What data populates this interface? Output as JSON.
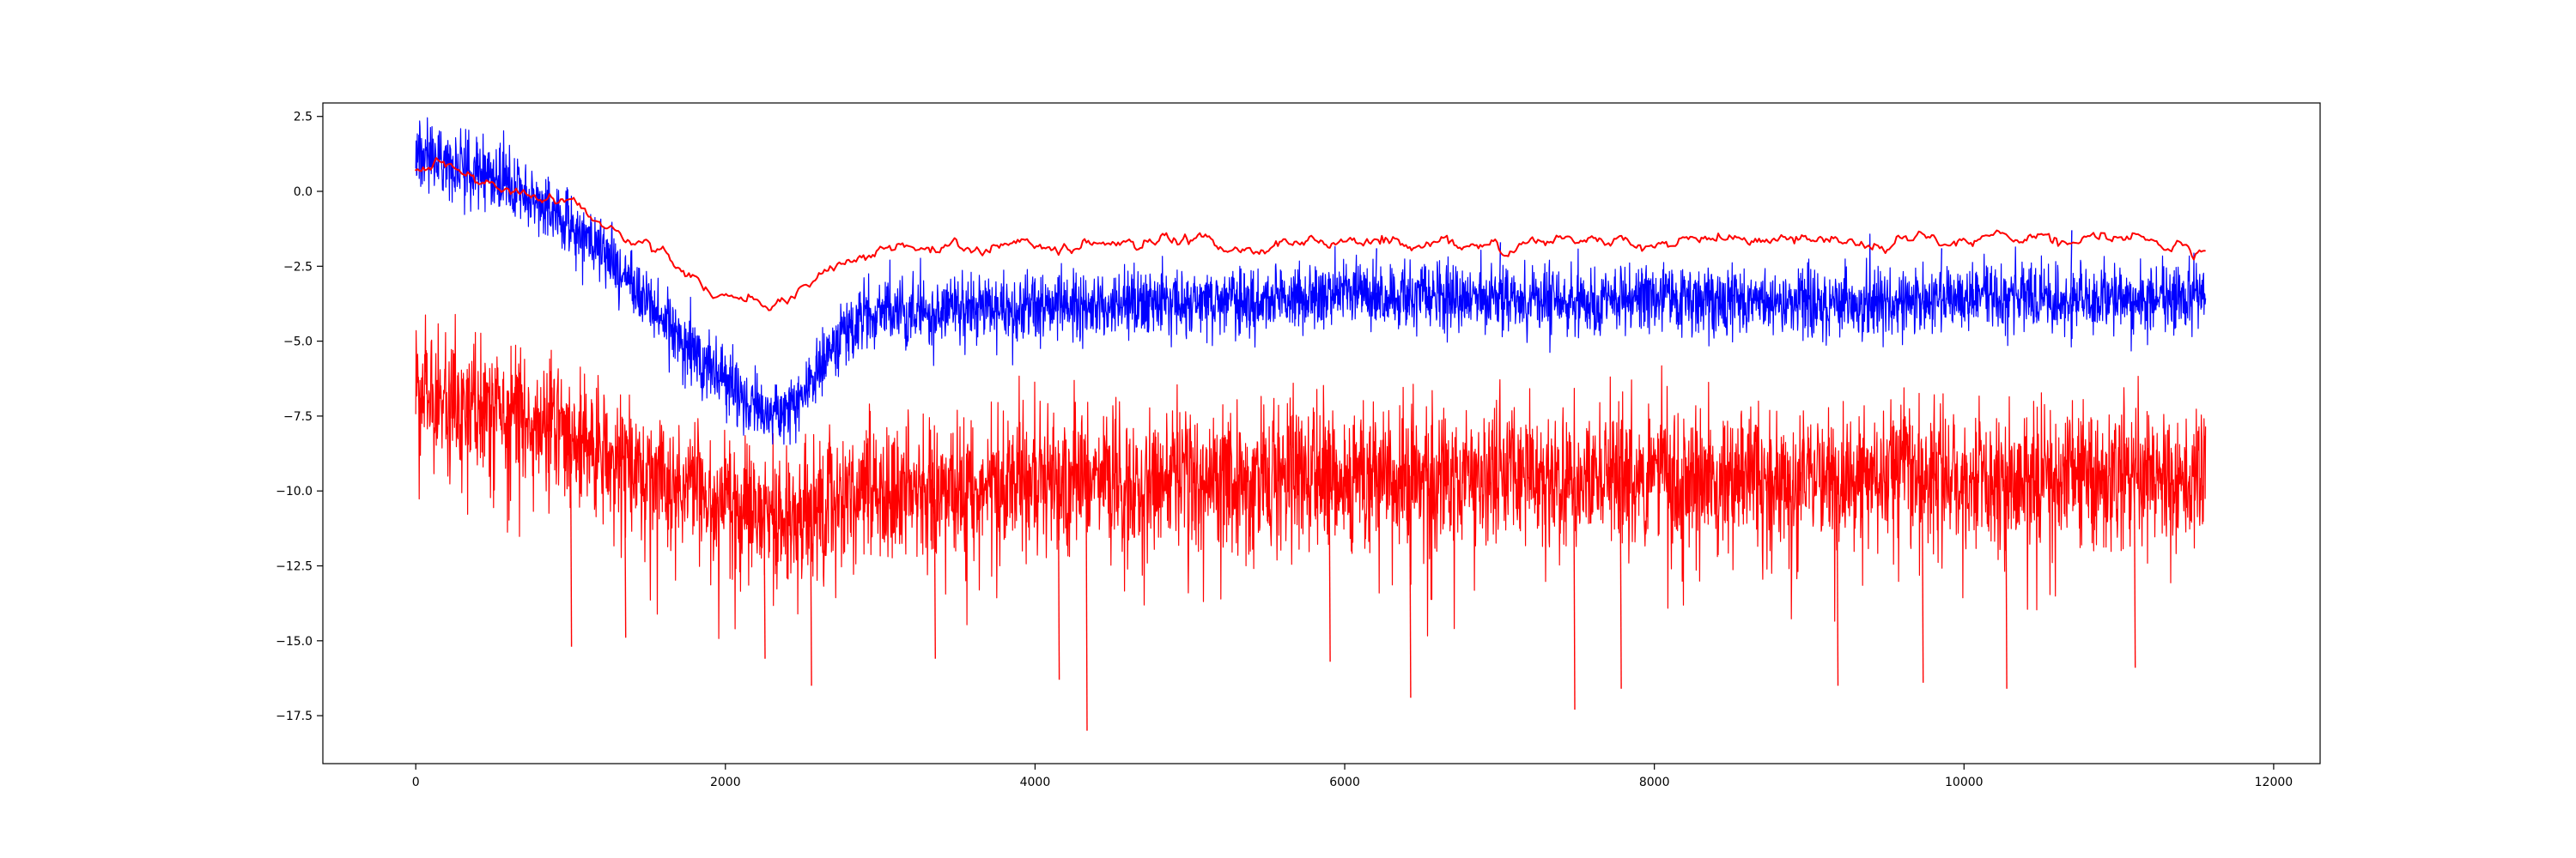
{
  "chart_data": {
    "type": "line",
    "title": "",
    "xlabel": "",
    "ylabel": "",
    "xlim": [
      -600,
      12300
    ],
    "ylim": [
      -19.1,
      2.95
    ],
    "grid": false,
    "x_ticks": [
      0,
      2000,
      4000,
      6000,
      8000,
      10000,
      12000
    ],
    "x_tick_labels": [
      "0",
      "2000",
      "4000",
      "6000",
      "8000",
      "10000",
      "12000"
    ],
    "y_ticks": [
      2.5,
      0.0,
      -2.5,
      -5.0,
      -7.5,
      -10.0,
      -12.5,
      -15.0,
      -17.5
    ],
    "y_tick_labels": [
      "2.5",
      "0.0",
      "−2.5",
      "−5.0",
      "−7.5",
      "−10.0",
      "−12.5",
      "−15.0",
      "−17.5"
    ],
    "x_max_sample": 11560,
    "series": [
      {
        "color": "#ff0000",
        "style": "noisy",
        "amplitude": 1.1,
        "spikes": [
          [
            1000,
            -15.2
          ],
          [
            1350,
            -14.9
          ],
          [
            2250,
            -15.6
          ],
          [
            2550,
            -16.5
          ],
          [
            3350,
            -15.6
          ],
          [
            4150,
            -16.3
          ],
          [
            4330,
            -18.0
          ],
          [
            5900,
            -15.7
          ],
          [
            6420,
            -16.9
          ],
          [
            7480,
            -17.3
          ],
          [
            7780,
            -16.6
          ],
          [
            9180,
            -16.5
          ],
          [
            9730,
            -16.4
          ],
          [
            10270,
            -16.6
          ],
          [
            11100,
            -15.9
          ]
        ],
        "x": [
          0,
          200,
          400,
          600,
          800,
          1000,
          1200,
          1400,
          1600,
          1800,
          2000,
          2200,
          2400,
          2600,
          2800,
          3000,
          3500,
          4000,
          4500,
          5000,
          5500,
          6000,
          6500,
          7000,
          7500,
          8000,
          8500,
          9000,
          9500,
          10000,
          10500,
          11000,
          11560
        ],
        "y": [
          -6.7,
          -7.1,
          -7.3,
          -7.5,
          -7.8,
          -8.1,
          -8.6,
          -9.2,
          -9.6,
          -10.0,
          -10.4,
          -10.7,
          -10.9,
          -10.6,
          -10.2,
          -9.9,
          -9.8,
          -9.7,
          -9.6,
          -9.6,
          -9.5,
          -9.5,
          -9.5,
          -9.5,
          -9.6,
          -9.5,
          -9.6,
          -9.5,
          -9.5,
          -9.5,
          -9.5,
          -9.5,
          -9.5
        ]
      },
      {
        "color": "#0000ff",
        "style": "noisy",
        "amplitude": 0.55,
        "spikes": [
          [
            10690,
            -1.3
          ],
          [
            9850,
            -1.9
          ],
          [
            7000,
            -1.7
          ],
          [
            6200,
            -1.9
          ]
        ],
        "x": [
          0,
          200,
          400,
          600,
          800,
          1000,
          1200,
          1400,
          1600,
          1800,
          2000,
          2100,
          2200,
          2300,
          2400,
          2500,
          2600,
          2700,
          2800,
          2900,
          3000,
          3500,
          4000,
          4500,
          5000,
          5500,
          6000,
          6500,
          7000,
          7500,
          8000,
          8500,
          9000,
          9500,
          10000,
          10500,
          11000,
          11560
        ],
        "y": [
          1.3,
          1.0,
          0.7,
          0.2,
          -0.4,
          -1.1,
          -2.0,
          -3.1,
          -4.3,
          -5.4,
          -6.3,
          -6.8,
          -7.2,
          -7.4,
          -7.3,
          -6.8,
          -5.9,
          -5.1,
          -4.6,
          -4.3,
          -4.1,
          -3.9,
          -3.9,
          -3.8,
          -3.7,
          -3.7,
          -3.4,
          -3.5,
          -3.6,
          -3.8,
          -3.5,
          -3.6,
          -3.8,
          -3.7,
          -3.5,
          -3.6,
          -3.6,
          -3.6
        ]
      },
      {
        "color": "#ff0000",
        "style": "smooth",
        "amplitude": 0.08,
        "spikes": [],
        "x": [
          0,
          200,
          400,
          600,
          800,
          1000,
          1200,
          1400,
          1600,
          1800,
          2000,
          2200,
          2300,
          2400,
          2500,
          2600,
          2800,
          3000,
          3500,
          4000,
          4500,
          5000,
          5500,
          6000,
          6500,
          7000,
          7500,
          8000,
          8500,
          9000,
          9500,
          10000,
          10500,
          11000,
          11560
        ],
        "y": [
          0.75,
          0.6,
          0.4,
          0.2,
          0.0,
          -0.4,
          -1.0,
          -1.6,
          -2.2,
          -2.8,
          -3.4,
          -3.7,
          -3.8,
          -3.6,
          -3.2,
          -2.8,
          -2.3,
          -2.0,
          -1.9,
          -1.8,
          -1.8,
          -1.7,
          -1.8,
          -1.7,
          -1.7,
          -1.7,
          -1.7,
          -1.7,
          -1.7,
          -1.7,
          -1.7,
          -1.7,
          -1.7,
          -1.7,
          -1.8
        ]
      }
    ]
  }
}
